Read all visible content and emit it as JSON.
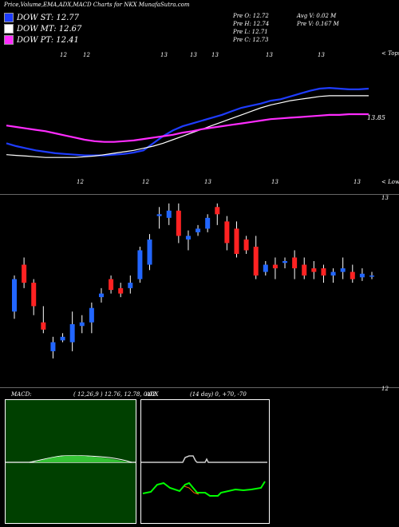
{
  "header": {
    "title": "Price,Volume,EMA,ADX,MACD Charts for NKX  MunafaSutra.com"
  },
  "legend": [
    {
      "label": "DOW ST: 12.77",
      "color": "#1e3cff"
    },
    {
      "label": "DOW MT: 12.67",
      "color": "#ffffff"
    },
    {
      "label": "DOW PT: 12.41",
      "color": "#ff2cff"
    }
  ],
  "quote": {
    "open": "Pre   O: 12.72",
    "high": "Pre   H: 12.74",
    "low": "Pre   L: 12.71",
    "close": "Pre   C: 12.73",
    "avg_volume": "Avg V: 0.02  M",
    "pre_volume": "Pre   V: 0.167 M"
  },
  "ema_panel": {
    "top_label": "< Tops",
    "bottom_label": "< Lows",
    "price_label": "13.85",
    "top_ticks": [
      "12",
      "12",
      "13",
      "13",
      "13",
      "13",
      "13"
    ],
    "bottom_ticks": [
      "12",
      "12",
      "13",
      "13",
      "13"
    ]
  },
  "candle_panel": {
    "top_label": "13",
    "bottom_label": "12"
  },
  "macd": {
    "label": "MACD:",
    "values": "( 12,26,9 ) 12.76,  12.78,  0.02",
    "bg_color": "#004000"
  },
  "adx": {
    "label": "ADX",
    "values": "(14  day) 0,  +70,  -70",
    "bg_color": "#000000"
  },
  "chart_data": [
    {
      "type": "line",
      "name": "EMA",
      "series": [
        {
          "name": "DOW ST",
          "color": "#1e3cff",
          "values": [
            12.0,
            11.96,
            11.93,
            11.9,
            11.88,
            11.86,
            11.85,
            11.84,
            11.83,
            11.83,
            11.83,
            11.84,
            11.85,
            11.87,
            11.9,
            12.0,
            12.1,
            12.18,
            12.24,
            12.28,
            12.32,
            12.36,
            12.4,
            12.45,
            12.5,
            12.53,
            12.56,
            12.6,
            12.62,
            12.66,
            12.7,
            12.74,
            12.77,
            12.78,
            12.77,
            12.76,
            12.76,
            12.77
          ]
        },
        {
          "name": "DOW MT",
          "color": "#ffffff",
          "values": [
            11.84,
            11.83,
            11.82,
            11.81,
            11.8,
            11.8,
            11.8,
            11.8,
            11.81,
            11.82,
            11.84,
            11.86,
            11.88,
            11.9,
            11.93,
            11.96,
            12.0,
            12.05,
            12.1,
            12.15,
            12.2,
            12.25,
            12.3,
            12.35,
            12.4,
            12.45,
            12.5,
            12.54,
            12.57,
            12.6,
            12.62,
            12.64,
            12.66,
            12.67,
            12.67,
            12.67,
            12.67,
            12.67
          ]
        },
        {
          "name": "DOW PT",
          "color": "#ff2cff",
          "values": [
            12.25,
            12.23,
            12.21,
            12.19,
            12.17,
            12.14,
            12.11,
            12.08,
            12.05,
            12.03,
            12.02,
            12.02,
            12.03,
            12.04,
            12.06,
            12.08,
            12.1,
            12.12,
            12.15,
            12.17,
            12.2,
            12.22,
            12.24,
            12.26,
            12.28,
            12.3,
            12.32,
            12.34,
            12.35,
            12.36,
            12.37,
            12.38,
            12.39,
            12.4,
            12.4,
            12.41,
            12.41,
            12.41
          ]
        }
      ]
    },
    {
      "type": "candlestick",
      "name": "Price",
      "candles": [
        {
          "o": 12.42,
          "h": 12.62,
          "l": 12.38,
          "c": 12.6
        },
        {
          "o": 12.68,
          "h": 12.72,
          "l": 12.55,
          "c": 12.58
        },
        {
          "o": 12.58,
          "h": 12.6,
          "l": 12.4,
          "c": 12.45
        },
        {
          "o": 12.36,
          "h": 12.45,
          "l": 12.3,
          "c": 12.32
        },
        {
          "o": 12.2,
          "h": 12.28,
          "l": 12.16,
          "c": 12.25
        },
        {
          "o": 12.26,
          "h": 12.3,
          "l": 12.25,
          "c": 12.28
        },
        {
          "o": 12.25,
          "h": 12.42,
          "l": 12.2,
          "c": 12.35
        },
        {
          "o": 12.34,
          "h": 12.4,
          "l": 12.3,
          "c": 12.36
        },
        {
          "o": 12.36,
          "h": 12.47,
          "l": 12.3,
          "c": 12.44
        },
        {
          "o": 12.5,
          "h": 12.55,
          "l": 12.47,
          "c": 12.52
        },
        {
          "o": 12.6,
          "h": 12.62,
          "l": 12.52,
          "c": 12.54
        },
        {
          "o": 12.55,
          "h": 12.58,
          "l": 12.5,
          "c": 12.52
        },
        {
          "o": 12.55,
          "h": 12.62,
          "l": 12.52,
          "c": 12.58
        },
        {
          "o": 12.6,
          "h": 12.78,
          "l": 12.58,
          "c": 12.76
        },
        {
          "o": 12.68,
          "h": 12.85,
          "l": 12.65,
          "c": 12.82
        },
        {
          "o": 12.95,
          "h": 13.0,
          "l": 12.88,
          "c": 12.96
        },
        {
          "o": 12.94,
          "h": 13.02,
          "l": 12.9,
          "c": 12.98
        },
        {
          "o": 12.98,
          "h": 13.02,
          "l": 12.8,
          "c": 12.84
        },
        {
          "o": 12.82,
          "h": 12.87,
          "l": 12.76,
          "c": 12.84
        },
        {
          "o": 12.86,
          "h": 12.9,
          "l": 12.84,
          "c": 12.88
        },
        {
          "o": 12.88,
          "h": 12.96,
          "l": 12.86,
          "c": 12.94
        },
        {
          "o": 13.0,
          "h": 13.02,
          "l": 12.9,
          "c": 12.96
        },
        {
          "o": 12.92,
          "h": 12.95,
          "l": 12.76,
          "c": 12.8
        },
        {
          "o": 12.88,
          "h": 12.92,
          "l": 12.72,
          "c": 12.74
        },
        {
          "o": 12.82,
          "h": 12.84,
          "l": 12.74,
          "c": 12.76
        },
        {
          "o": 12.78,
          "h": 12.84,
          "l": 12.6,
          "c": 12.62
        },
        {
          "o": 12.64,
          "h": 12.7,
          "l": 12.62,
          "c": 12.68
        },
        {
          "o": 12.68,
          "h": 12.72,
          "l": 12.6,
          "c": 12.66
        },
        {
          "o": 12.69,
          "h": 12.72,
          "l": 12.66,
          "c": 12.7
        },
        {
          "o": 12.72,
          "h": 12.76,
          "l": 12.6,
          "c": 12.66
        },
        {
          "o": 12.68,
          "h": 12.72,
          "l": 12.6,
          "c": 12.62
        },
        {
          "o": 12.66,
          "h": 12.7,
          "l": 12.6,
          "c": 12.64
        },
        {
          "o": 12.66,
          "h": 12.68,
          "l": 12.58,
          "c": 12.62
        },
        {
          "o": 12.62,
          "h": 12.66,
          "l": 12.58,
          "c": 12.64
        },
        {
          "o": 12.64,
          "h": 12.72,
          "l": 12.6,
          "c": 12.66
        },
        {
          "o": 12.64,
          "h": 12.68,
          "l": 12.58,
          "c": 12.6
        },
        {
          "o": 12.61,
          "h": 12.66,
          "l": 12.59,
          "c": 12.63
        },
        {
          "o": 12.62,
          "h": 12.64,
          "l": 12.6,
          "c": 12.62
        }
      ]
    }
  ]
}
